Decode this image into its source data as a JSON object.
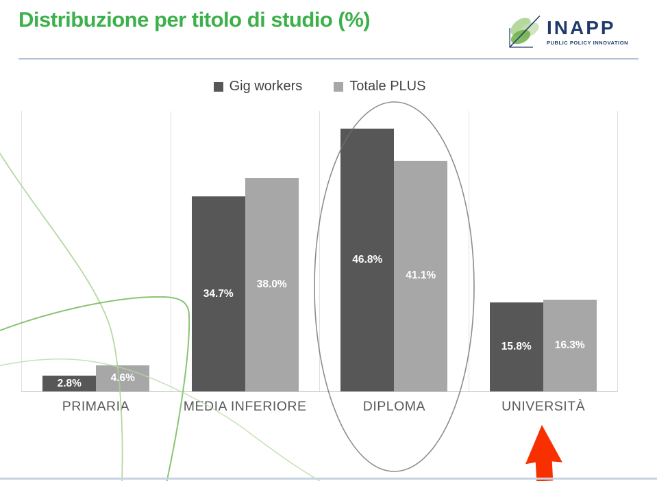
{
  "header": {
    "title": "Distribuzione per titolo di studio (%)",
    "logo": {
      "name": "INAPP",
      "tagline": "PUBLIC POLICY INNOVATION"
    }
  },
  "chart_data": {
    "type": "bar",
    "title": "Distribuzione per titolo di studio (%)",
    "categories": [
      "PRIMARIA",
      "MEDIA INFERIORE",
      "DIPLOMA",
      "UNIVERSITÀ"
    ],
    "series": [
      {
        "name": "Gig workers",
        "color": "#575757",
        "values": [
          2.8,
          34.7,
          46.8,
          15.8
        ]
      },
      {
        "name": "Totale PLUS",
        "color": "#a7a7a7",
        "values": [
          4.6,
          38.0,
          41.1,
          16.3
        ]
      }
    ],
    "value_labels": [
      [
        "2.8%",
        "4.6%"
      ],
      [
        "34.7%",
        "38.0%"
      ],
      [
        "46.8%",
        "41.1%"
      ],
      [
        "15.8%",
        "16.3%"
      ]
    ],
    "ylim": [
      0,
      50
    ],
    "xlabel": "",
    "ylabel": "",
    "legend_position": "top-center",
    "grid": "vertical-category-separators",
    "value_label_position": "inside-center",
    "annotations": [
      {
        "type": "ellipse",
        "target": "DIPLOMA",
        "note": "gray ellipse circling the DIPLOMA bars"
      },
      {
        "type": "arrow-up",
        "target": "UNIVERSITÀ",
        "color": "#f83000",
        "note": "red arrow pointing up below UNIVERSITÀ label"
      }
    ]
  },
  "colors": {
    "title_green": "#3cb04a",
    "logo_navy": "#1f3b6c",
    "series_dark": "#575757",
    "series_light": "#a7a7a7",
    "gridline": "#e0e0e0",
    "axis_line": "#c6c6c6",
    "title_rule": "#b3c2d4",
    "bottom_rule": "#c6d4e2",
    "annotation_ellipse": "#6f6f6f",
    "annotation_arrow": "#f83000",
    "decor_green": "#9ecb86"
  }
}
